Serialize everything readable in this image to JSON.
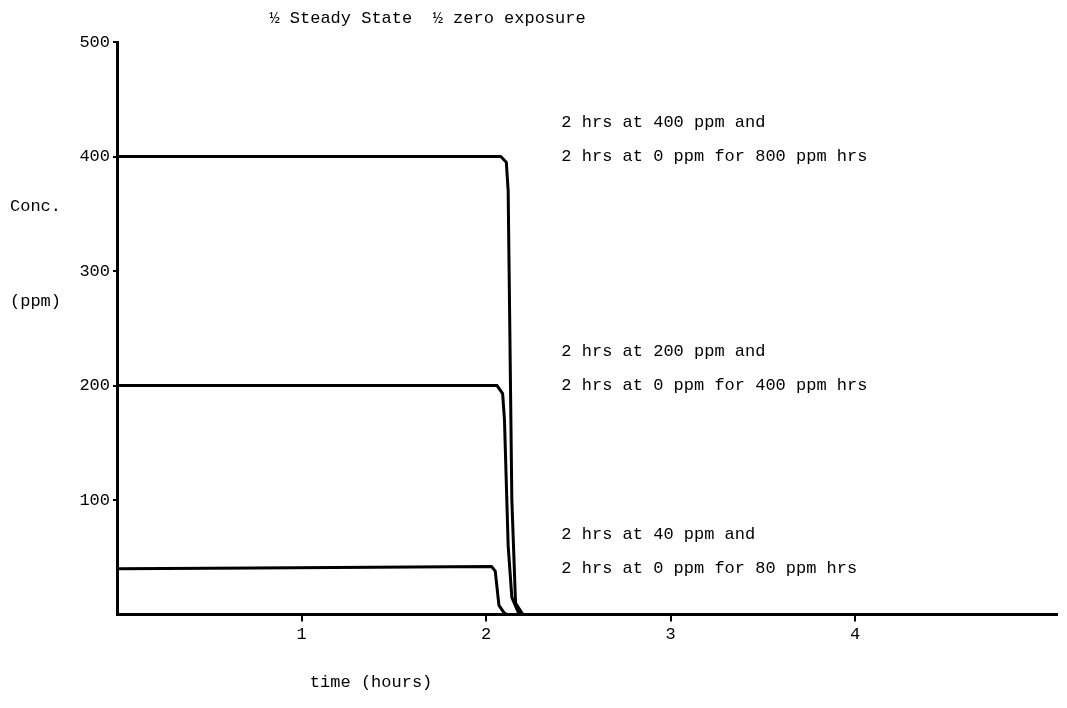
{
  "chart_data": {
    "type": "line",
    "title": "½ Steady State  ½ zero exposure",
    "xlabel": "time (hours)",
    "ylabel": "Conc.\n(ppm)",
    "xlim": [
      0,
      5.1
    ],
    "xticks": [
      1,
      2,
      3,
      4
    ],
    "ylim": [
      0,
      500
    ],
    "yticks": [
      100,
      200,
      300,
      400,
      500
    ],
    "grid": false,
    "legend": false,
    "marker": "none",
    "line_style": "solid",
    "series": [
      {
        "name": "2 hrs at 400 ppm and\n2 hrs at 0 ppm for 800 ppm hrs",
        "color": "#000000",
        "x": [
          0,
          2.08,
          2.11,
          2.12,
          2.14,
          2.16,
          2.2,
          2.3
        ],
        "values": [
          400,
          400,
          395,
          370,
          100,
          10,
          0,
          0
        ]
      },
      {
        "name": "2 hrs at 200 ppm and\n2 hrs at 0 ppm for 400 ppm hrs",
        "color": "#000000",
        "x": [
          0,
          2.06,
          2.09,
          2.1,
          2.12,
          2.14,
          2.18,
          2.3
        ],
        "values": [
          200,
          200,
          193,
          170,
          60,
          15,
          0,
          0
        ]
      },
      {
        "name": "2 hrs at 40 ppm and\n2 hrs at 0 ppm for 80 ppm hrs",
        "color": "#000000",
        "x": [
          0,
          2.03,
          2.05,
          2.07,
          2.1,
          2.12,
          2.3
        ],
        "values": [
          40,
          42,
          38,
          8,
          1,
          0,
          0
        ]
      }
    ]
  }
}
